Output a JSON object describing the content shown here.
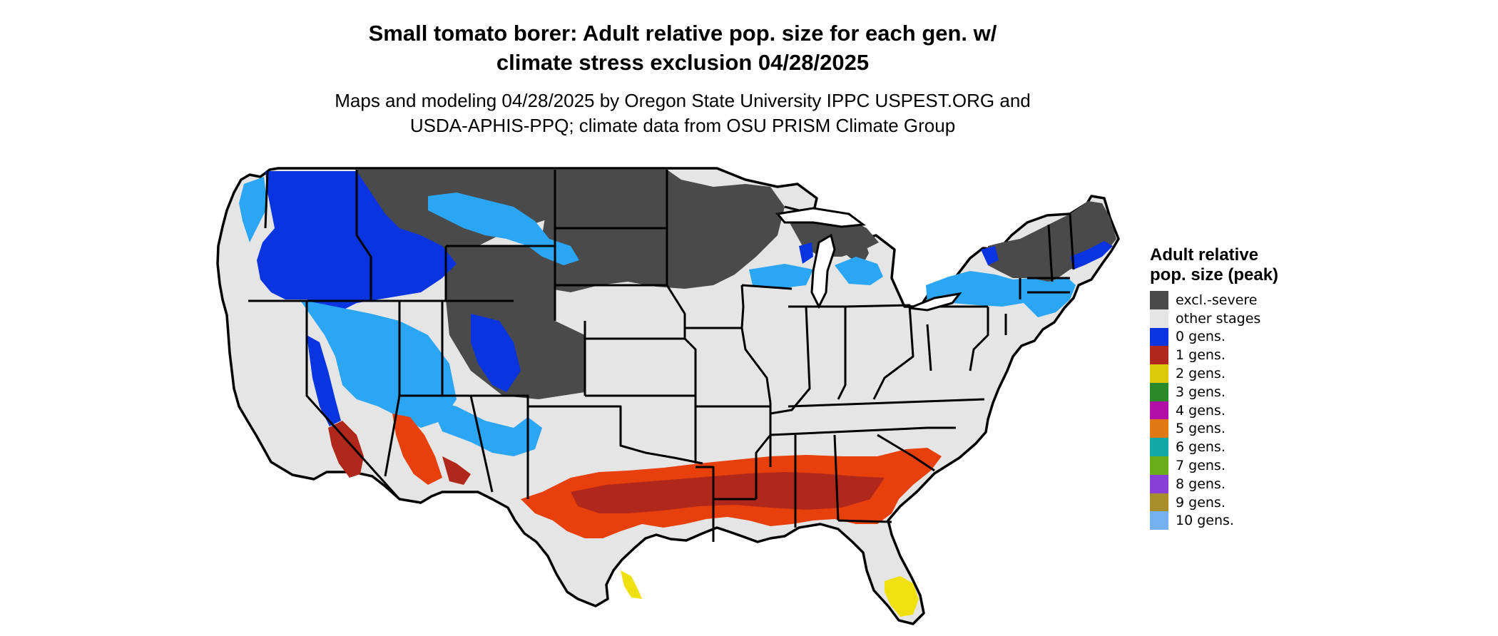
{
  "title": {
    "line1": "Small tomato borer: Adult relative pop. size for each gen. w/",
    "line2": "climate stress exclusion 04/28/2025"
  },
  "subtitle": {
    "line1": "Maps and modeling 04/28/2025 by Oregon State University IPPC USPEST.ORG and",
    "line2": "USDA-APHIS-PPQ; climate data from OSU PRISM Climate Group"
  },
  "legend": {
    "title": "Adult relative pop. size (peak)",
    "items": [
      {
        "label": "excl.-severe",
        "color": "#4a4a4a"
      },
      {
        "label": "other stages",
        "color": "#e5e5e5"
      },
      {
        "label": "0 gens.",
        "color": "#0a34e0"
      },
      {
        "label": "1 gens.",
        "color": "#b0271b"
      },
      {
        "label": "2 gens.",
        "color": "#dcc90a"
      },
      {
        "label": "3 gens.",
        "color": "#2a8a2a"
      },
      {
        "label": "4 gens.",
        "color": "#b20fa8"
      },
      {
        "label": "5 gens.",
        "color": "#e07814"
      },
      {
        "label": "6 gens.",
        "color": "#12a8a8"
      },
      {
        "label": "7 gens.",
        "color": "#6aad1a"
      },
      {
        "label": "8 gens.",
        "color": "#8a3ed8"
      },
      {
        "label": "9 gens.",
        "color": "#a88e2a"
      },
      {
        "label": "10 gens.",
        "color": "#74b0f0"
      }
    ]
  },
  "map_colors": {
    "excluded": "#4a4a4a",
    "other": "#e5e5e5",
    "gen0_dark": "#0a34e0",
    "gen0_light": "#2aa6f4",
    "gen1_dark": "#b0271b",
    "gen1_bright": "#e8400c",
    "gen2": "#f0e010",
    "border": "#000000"
  }
}
